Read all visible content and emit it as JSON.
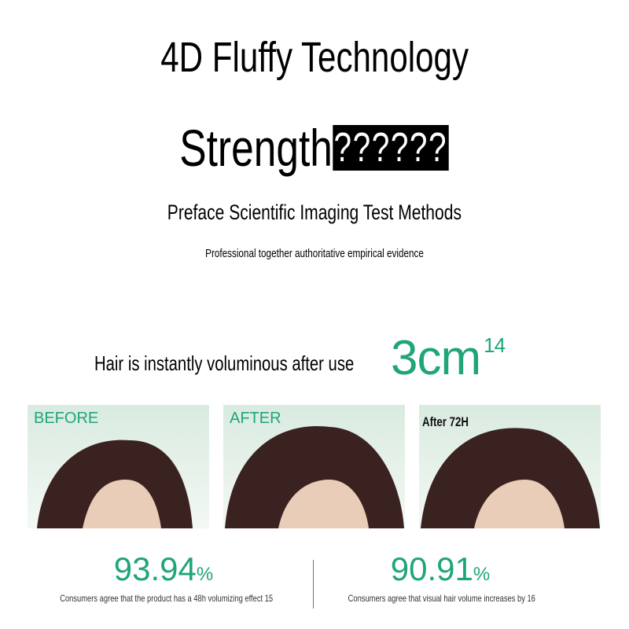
{
  "header": {
    "title": "4D Fluffy Technology",
    "strength_word": "Strength",
    "strength_missing_glyphs": "??????",
    "preface": "Preface Scientific Imaging Test Methods",
    "subtitle": "Professional together authoritative empirical evidence"
  },
  "claim": {
    "text": "Hair is instantly voluminous after use",
    "value": "3cm",
    "footnote": "14"
  },
  "panels": [
    {
      "label": "BEFORE"
    },
    {
      "label": "AFTER"
    },
    {
      "label": "After 72H"
    }
  ],
  "stats": [
    {
      "value": "93.94",
      "unit": "%",
      "caption": "Consumers agree that the product has a 48h volumizing effect 15"
    },
    {
      "value": "90.91",
      "unit": "%",
      "caption": "Consumers agree that visual hair volume increases by 16"
    }
  ],
  "colors": {
    "accent": "#1fa57a",
    "hair": "#3a2220",
    "skin": "#e9cdb8",
    "panel_bg": "#d9ebe0"
  }
}
